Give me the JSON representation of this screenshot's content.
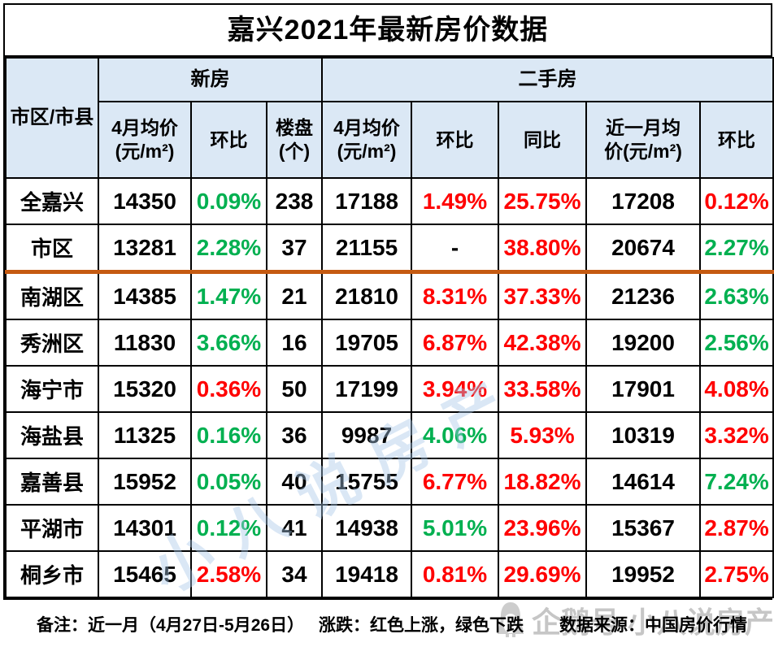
{
  "title": "嘉兴2021年最新房价数据",
  "colors": {
    "up_red": "#ff0000",
    "down_green": "#00b050",
    "divider_orange": "#c55a11",
    "header_bg": "#dbe8f5",
    "border_black": "#000000",
    "watermark_blue": "#a8c8e8",
    "watermark_gray": "#c6c6c6"
  },
  "chart_data": {
    "type": "table",
    "title": "嘉兴2021年最新房价数据",
    "corner_header": "市区/市县",
    "column_groups": [
      {
        "label": "新房",
        "colspan": 3
      },
      {
        "label": "二手房",
        "colspan": 5
      }
    ],
    "columns": [
      "4月均价\n(元/m²)",
      "环比",
      "楼盘\n(个)",
      "4月均价\n(元/m²)",
      "环比",
      "同比",
      "近一月均\n价(元/m²)",
      "环比"
    ],
    "legend_note": "红色上涨，绿色下跌",
    "rows": [
      {
        "region": "全嘉兴",
        "values": [
          "14350",
          "0.09%",
          "238",
          "17188",
          "1.49%",
          "25.75%",
          "17208",
          "0.12%"
        ],
        "trend": [
          "k",
          "g",
          "k",
          "k",
          "r",
          "r",
          "k",
          "r"
        ],
        "divider_below": false
      },
      {
        "region": "市区",
        "values": [
          "13281",
          "2.28%",
          "37",
          "21155",
          "-",
          "38.80%",
          "20674",
          "2.27%"
        ],
        "trend": [
          "k",
          "g",
          "k",
          "k",
          "k",
          "r",
          "k",
          "g"
        ],
        "divider_below": true
      },
      {
        "region": "南湖区",
        "values": [
          "14385",
          "1.47%",
          "21",
          "21810",
          "8.31%",
          "37.33%",
          "21236",
          "2.63%"
        ],
        "trend": [
          "k",
          "g",
          "k",
          "k",
          "r",
          "r",
          "k",
          "g"
        ],
        "divider_below": false
      },
      {
        "region": "秀洲区",
        "values": [
          "11830",
          "3.66%",
          "16",
          "19705",
          "6.87%",
          "42.38%",
          "19200",
          "2.56%"
        ],
        "trend": [
          "k",
          "g",
          "k",
          "k",
          "r",
          "r",
          "k",
          "g"
        ],
        "divider_below": false
      },
      {
        "region": "海宁市",
        "values": [
          "15320",
          "0.36%",
          "50",
          "17199",
          "3.94%",
          "33.58%",
          "17901",
          "4.08%"
        ],
        "trend": [
          "k",
          "r",
          "k",
          "k",
          "r",
          "r",
          "k",
          "r"
        ],
        "divider_below": false
      },
      {
        "region": "海盐县",
        "values": [
          "11325",
          "0.16%",
          "36",
          "9987",
          "4.06%",
          "5.93%",
          "10319",
          "3.32%"
        ],
        "trend": [
          "k",
          "g",
          "k",
          "k",
          "g",
          "r",
          "k",
          "r"
        ],
        "divider_below": false
      },
      {
        "region": "嘉善县",
        "values": [
          "15952",
          "0.05%",
          "40",
          "15755",
          "6.77%",
          "18.82%",
          "14614",
          "7.24%"
        ],
        "trend": [
          "k",
          "g",
          "k",
          "k",
          "r",
          "r",
          "k",
          "g"
        ],
        "divider_below": false
      },
      {
        "region": "平湖市",
        "values": [
          "14301",
          "0.12%",
          "41",
          "14938",
          "5.01%",
          "23.96%",
          "15367",
          "2.87%"
        ],
        "trend": [
          "k",
          "g",
          "k",
          "k",
          "g",
          "r",
          "k",
          "r"
        ],
        "divider_below": false
      },
      {
        "region": "桐乡市",
        "values": [
          "15465",
          "2.58%",
          "34",
          "19418",
          "0.81%",
          "29.69%",
          "19952",
          "2.75%"
        ],
        "trend": [
          "k",
          "r",
          "k",
          "k",
          "r",
          "r",
          "k",
          "r"
        ],
        "divider_below": false
      }
    ]
  },
  "footer": {
    "note_period": "备注：近一月（4月27日-5月26日）",
    "note_legend": "涨跌：红色上涨，绿色下跌",
    "note_source": "数据来源：中国房价行情"
  },
  "watermarks": {
    "diagonal_text": "小八说房产",
    "account_text": "企鹅号 小八说房产"
  }
}
